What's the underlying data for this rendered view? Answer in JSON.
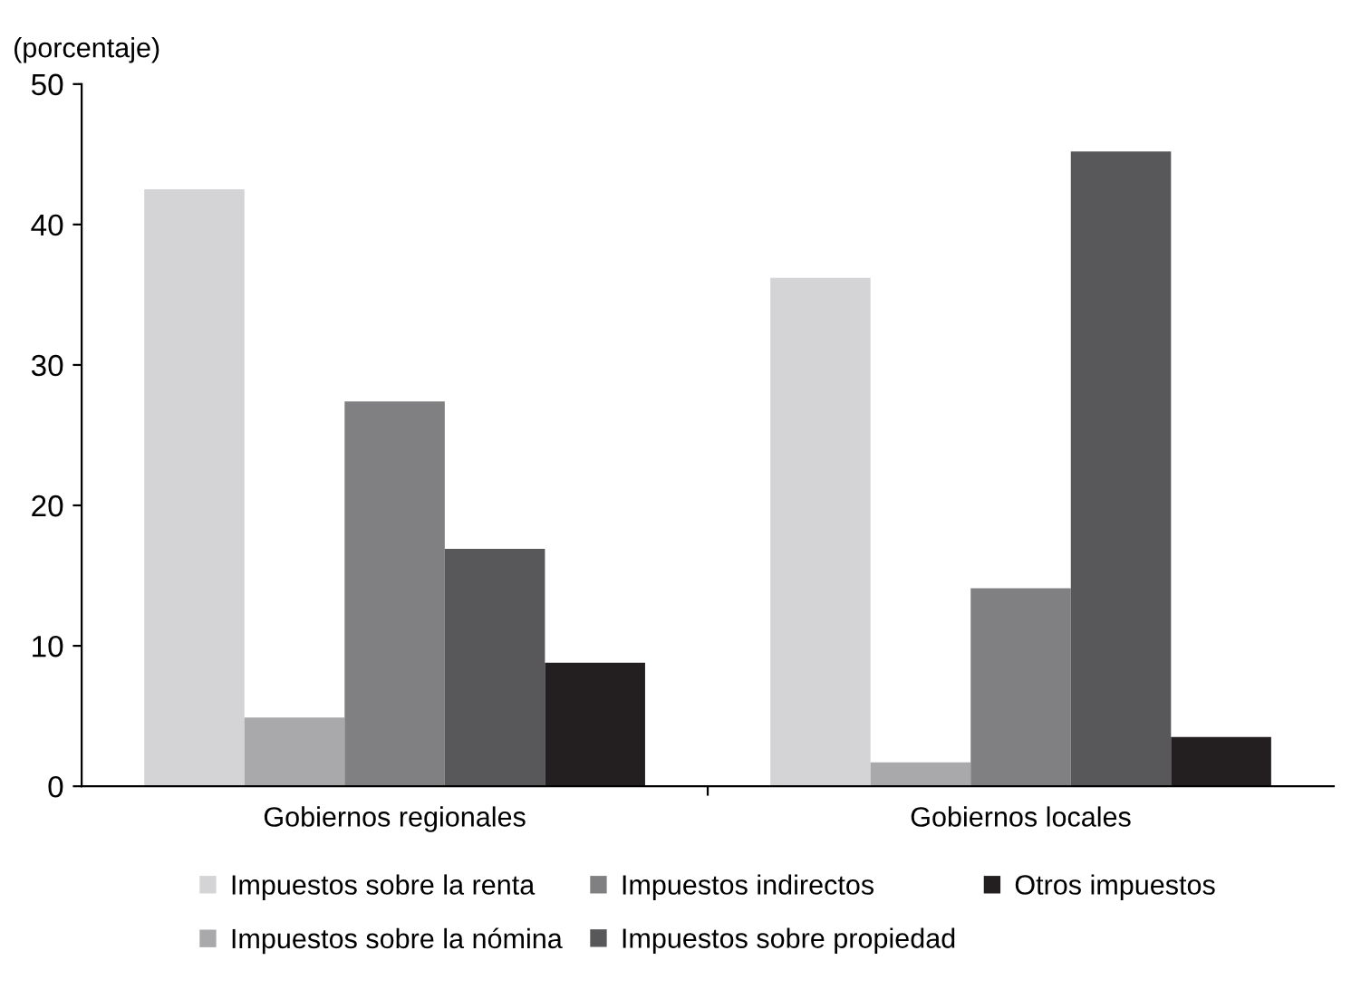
{
  "chart_data": {
    "type": "bar",
    "ylabel": "(porcentaje)",
    "categories": [
      "Gobiernos regionales",
      "Gobiernos locales"
    ],
    "series": [
      {
        "name": "Impuestos sobre la renta",
        "color": "#d4d4d6",
        "values": [
          42.5,
          36.2
        ]
      },
      {
        "name": "Impuestos sobre la nómina",
        "color": "#a9a9ab",
        "values": [
          4.9,
          1.7
        ]
      },
      {
        "name": "Impuestos indirectos",
        "color": "#808082",
        "values": [
          27.4,
          14.1
        ]
      },
      {
        "name": "Impuestos sobre propiedad",
        "color": "#58585a",
        "values": [
          16.9,
          45.2
        ]
      },
      {
        "name": "Otros impuestos",
        "color": "#231f20",
        "values": [
          8.8,
          3.5
        ]
      }
    ],
    "ylim": [
      0,
      50
    ],
    "yticks": [
      0,
      10,
      20,
      30,
      40,
      50
    ],
    "grid": false,
    "legend": "bottom"
  }
}
